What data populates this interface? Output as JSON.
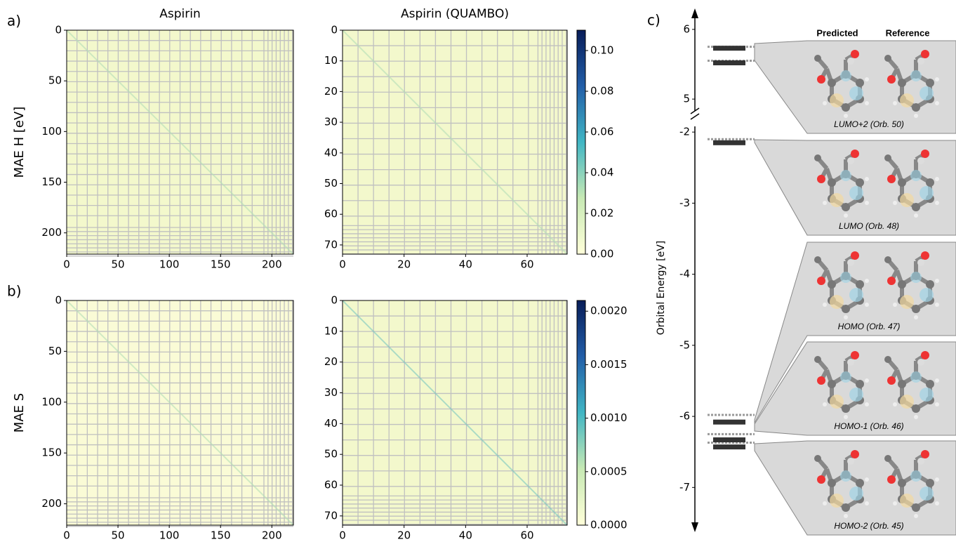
{
  "heatmaps": [
    {
      "panel_label": "a)",
      "title": "Aspirin",
      "ylabel": "MAE H [eV]",
      "xlim": [
        0,
        221
      ],
      "ylim": [
        0,
        221
      ],
      "xticks": [
        0,
        50,
        100,
        150,
        200
      ],
      "yticks": [
        0,
        50,
        100,
        150,
        200
      ]
    },
    {
      "title": "Aspirin (QUAMBO)",
      "xlim": [
        0,
        73
      ],
      "ylim": [
        0,
        73
      ],
      "xticks": [
        0,
        20,
        40,
        60
      ],
      "yticks": [
        0,
        10,
        20,
        30,
        40,
        50,
        60,
        70
      ],
      "colorbar": {
        "lim": [
          0,
          0.11
        ],
        "ticks": [
          {
            "value": 0,
            "label": "0.00"
          },
          0.02,
          0.04,
          0.06,
          0.08,
          {
            "value": 0.1,
            "label": "0.10"
          }
        ]
      }
    },
    {
      "panel_label": "b)",
      "ylabel": "MAE S",
      "xlim": [
        0,
        221
      ],
      "ylim": [
        0,
        221
      ],
      "xticks": [
        0,
        50,
        100,
        150,
        200
      ],
      "yticks": [
        0,
        50,
        100,
        150,
        200
      ]
    },
    {
      "xlim": [
        0,
        73
      ],
      "ylim": [
        0,
        73
      ],
      "xticks": [
        0,
        20,
        40,
        60
      ],
      "yticks": [
        0,
        10,
        20,
        30,
        40,
        50,
        60,
        70
      ],
      "colorbar": {
        "lim": [
          0,
          0.0021
        ],
        "ticks": [
          {
            "value": 0,
            "label": "0.0000"
          },
          0.0005,
          {
            "value": 0.001,
            "label": "0.0010"
          },
          {
            "value": 0.0015,
            "label": "0.0015"
          },
          {
            "value": 0.002,
            "label": "0.0020"
          }
        ]
      }
    }
  ],
  "orbitals": {
    "panel_label": "c)",
    "ylabel": "Orbital Energy [eV]",
    "ylim_upper": [
      4.81,
      6.2
    ],
    "yticks_upper": [
      5,
      6
    ],
    "ylim_lower": [
      -7.55,
      -1.9
    ],
    "yticks_lower": [
      -2,
      -3,
      -4,
      -5,
      -6,
      -7
    ],
    "columns": [
      "Predicted",
      "Reference"
    ],
    "series": [
      {
        "name": "Predicted",
        "color": "#999999",
        "values": [
          5.75,
          5.55,
          -2.1,
          -5.98,
          -6.25,
          -6.37
        ]
      },
      {
        "name": "Reference",
        "color": "#333333",
        "values": [
          5.73,
          5.52,
          -2.15,
          -6.08,
          -6.33,
          -6.43
        ]
      }
    ],
    "captions": [
      "LUMO+2 (Orb. 50)",
      "LUMO (Orb. 48)",
      "HOMO (Orb. 47)",
      "HOMO-1 (Orb. 46)",
      "HOMO-2 (Orb. 45)"
    ]
  }
}
